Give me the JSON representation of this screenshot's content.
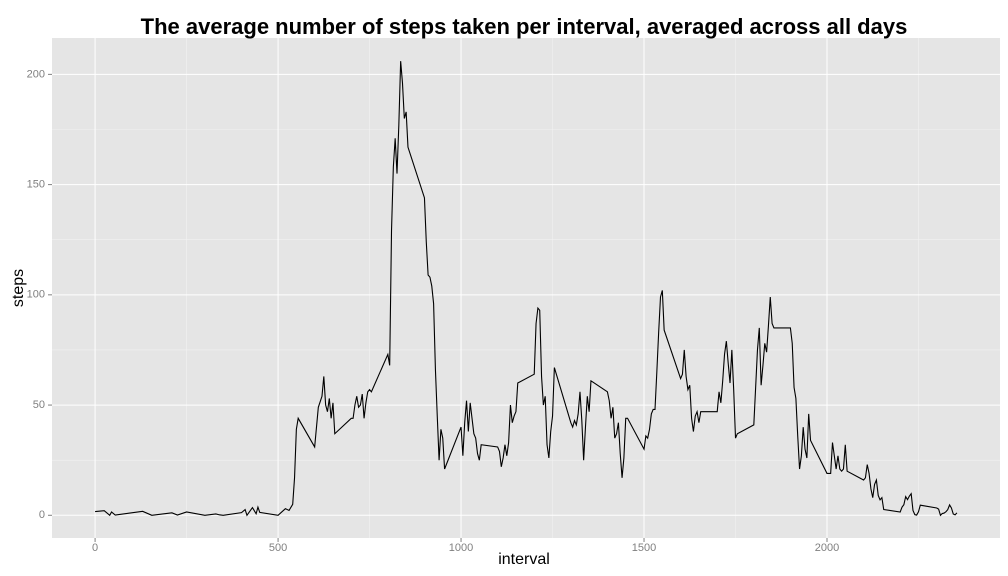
{
  "chart_data": {
    "type": "line",
    "title": "The average number of steps taken per interval, averaged across all days",
    "x_label": "interval",
    "y_label": "steps",
    "x": [
      0,
      25,
      40,
      45,
      55,
      130,
      155,
      210,
      225,
      250,
      300,
      330,
      340,
      350,
      400,
      410,
      415,
      430,
      440,
      445,
      450,
      500,
      520,
      530,
      540,
      545,
      550,
      555,
      600,
      610,
      620,
      625,
      630,
      635,
      640,
      645,
      650,
      655,
      700,
      705,
      710,
      715,
      720,
      725,
      730,
      735,
      740,
      745,
      750,
      755,
      800,
      805,
      810,
      815,
      820,
      825,
      830,
      835,
      840,
      845,
      850,
      855,
      900,
      905,
      910,
      915,
      920,
      925,
      930,
      935,
      940,
      945,
      950,
      955,
      1000,
      1005,
      1010,
      1015,
      1020,
      1025,
      1030,
      1035,
      1040,
      1045,
      1050,
      1055,
      1100,
      1105,
      1110,
      1115,
      1120,
      1125,
      1130,
      1135,
      1140,
      1145,
      1150,
      1155,
      1200,
      1205,
      1210,
      1215,
      1220,
      1225,
      1230,
      1235,
      1240,
      1245,
      1250,
      1255,
      1300,
      1305,
      1310,
      1315,
      1320,
      1325,
      1330,
      1335,
      1340,
      1345,
      1350,
      1355,
      1400,
      1405,
      1410,
      1415,
      1420,
      1425,
      1430,
      1435,
      1440,
      1445,
      1450,
      1455,
      1500,
      1505,
      1510,
      1515,
      1520,
      1525,
      1530,
      1535,
      1540,
      1545,
      1550,
      1555,
      1600,
      1605,
      1610,
      1615,
      1620,
      1625,
      1630,
      1635,
      1640,
      1645,
      1650,
      1655,
      1700,
      1705,
      1710,
      1715,
      1720,
      1725,
      1730,
      1735,
      1740,
      1745,
      1750,
      1755,
      1800,
      1805,
      1810,
      1815,
      1820,
      1825,
      1830,
      1835,
      1840,
      1845,
      1850,
      1855,
      1900,
      1905,
      1910,
      1915,
      1920,
      1925,
      1930,
      1935,
      1940,
      1945,
      1950,
      1955,
      2000,
      2005,
      2010,
      2015,
      2020,
      2025,
      2030,
      2035,
      2040,
      2045,
      2050,
      2055,
      2100,
      2105,
      2110,
      2115,
      2120,
      2125,
      2130,
      2135,
      2140,
      2145,
      2150,
      2155,
      2200,
      2205,
      2210,
      2215,
      2220,
      2225,
      2230,
      2235,
      2240,
      2245,
      2250,
      2255,
      2300,
      2305,
      2310,
      2315,
      2320,
      2325,
      2330,
      2335,
      2340,
      2345,
      2350,
      2355
    ],
    "series": [
      {
        "name": "steps",
        "color": "#000000",
        "values": [
          1.7,
          2.1,
          0,
          1.5,
          0.1,
          1.8,
          0,
          1.1,
          0.1,
          1.5,
          0,
          0.6,
          0.2,
          0,
          1.2,
          2.6,
          0,
          3.5,
          0.7,
          3.7,
          1.3,
          0,
          3,
          2.2,
          5,
          17,
          39,
          44,
          31,
          49,
          54,
          63,
          50,
          47,
          53,
          44,
          51,
          37,
          44,
          44,
          50,
          54,
          49,
          50,
          55,
          44,
          51,
          56,
          57,
          56,
          73,
          68,
          129,
          158,
          171,
          155,
          177,
          206,
          196,
          180,
          183,
          167,
          144,
          124,
          109,
          108,
          104,
          96,
          66,
          45,
          25,
          39,
          35,
          21,
          40,
          27,
          42,
          52,
          38,
          51,
          44,
          37,
          35,
          28,
          25,
          32,
          31,
          29,
          22,
          26,
          32,
          27,
          33,
          50,
          42,
          45,
          47,
          60,
          64,
          87,
          94,
          93,
          63,
          50,
          54,
          32,
          26,
          38,
          45,
          67,
          42,
          40,
          43,
          41,
          46,
          56,
          43,
          25,
          40,
          54,
          47,
          61,
          56,
          52,
          44,
          49,
          35,
          37,
          42,
          28,
          17,
          26,
          44,
          44,
          30,
          36,
          35,
          39,
          46,
          48,
          48,
          65,
          83,
          99,
          102,
          84,
          62,
          64,
          75,
          63,
          57,
          59,
          44,
          38,
          45,
          47,
          42,
          47,
          47,
          56,
          51,
          61,
          73,
          79,
          69,
          60,
          75,
          57,
          35,
          37,
          41,
          58,
          75,
          85,
          59,
          68,
          78,
          74,
          86,
          99,
          87,
          85,
          85,
          78,
          58,
          53,
          36,
          21,
          27,
          40,
          30,
          26,
          46,
          34,
          19,
          19,
          19,
          33,
          27,
          21,
          27,
          21,
          20,
          21,
          32,
          20,
          16,
          17,
          23,
          19,
          12,
          8,
          14,
          16,
          9,
          7,
          8,
          2.6,
          1.5,
          3.7,
          4.8,
          8.5,
          7.1,
          8.7,
          9.8,
          2.2,
          0.3,
          0.1,
          1.6,
          4.6,
          3.3,
          2.8,
          0,
          0.8,
          1,
          1.6,
          2.6,
          4.7,
          3.3,
          0.6,
          0.2,
          1.1
        ]
      }
    ],
    "xlim": [
      -117.75,
      2472.75
    ],
    "xticks": [
      0,
      500,
      1000,
      1500,
      2000
    ],
    "ylim": [
      -10.3,
      216.5
    ],
    "yticks": [
      0,
      50,
      100,
      150,
      200
    ],
    "grid": true
  }
}
